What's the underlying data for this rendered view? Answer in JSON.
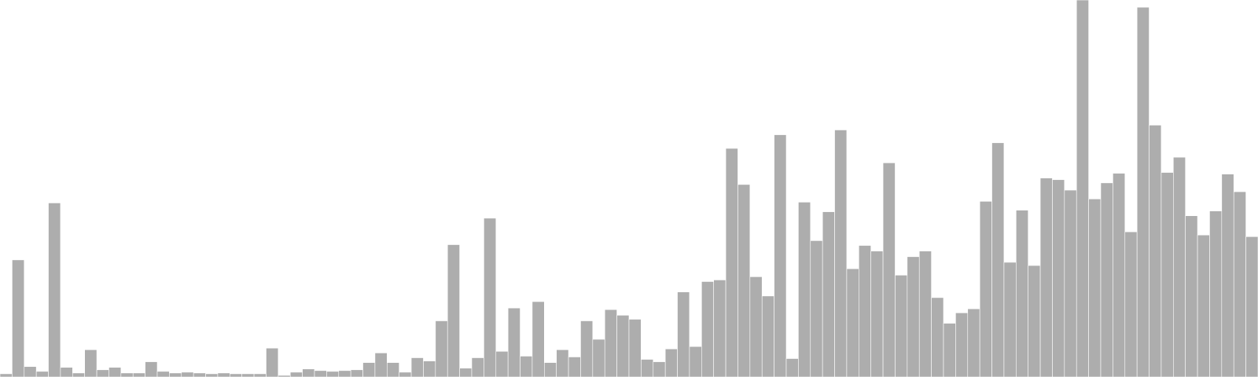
{
  "chart_data": {
    "type": "bar",
    "color": "#adadad",
    "ylim": [
      0,
      470
    ],
    "values": [
      4,
      146,
      13,
      7,
      217,
      12,
      5,
      34,
      9,
      12,
      5,
      5,
      19,
      7,
      5,
      6,
      5,
      4,
      5,
      4,
      4,
      4,
      36,
      2,
      6,
      10,
      8,
      7,
      8,
      9,
      18,
      30,
      18,
      6,
      24,
      20,
      70,
      165,
      11,
      24,
      198,
      32,
      86,
      26,
      94,
      18,
      34,
      25,
      70,
      47,
      84,
      77,
      72,
      22,
      19,
      35,
      106,
      38,
      119,
      121,
      285,
      240,
      125,
      101,
      302,
      23,
      218,
      170,
      206,
      308,
      135,
      164,
      157,
      267,
      127,
      150,
      157,
      99,
      67,
      80,
      85,
      219,
      292,
      143,
      208,
      139,
      248,
      246,
      233,
      470,
      222,
      242,
      254,
      181,
      461,
      314,
      255,
      274,
      201,
      177,
      207,
      253,
      231,
      175
    ]
  }
}
